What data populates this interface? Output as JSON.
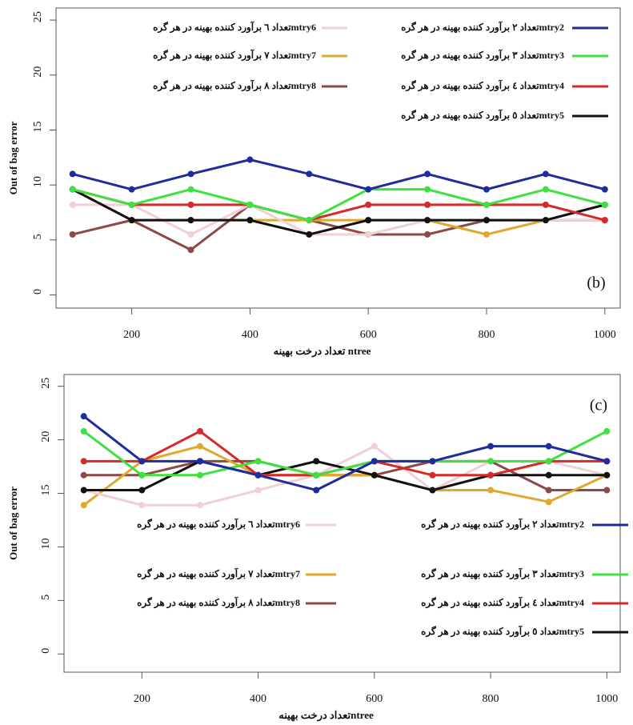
{
  "chart_data": [
    {
      "type": "line",
      "annotation": "(b)",
      "x_label": "تعداد درخت بهینه ntree",
      "y_label": "Out of bag error",
      "x": [
        100,
        200,
        300,
        400,
        500,
        600,
        700,
        800,
        900,
        1000
      ],
      "xlim": [
        72,
        1026
      ],
      "ylim": [
        -1.2,
        26.1
      ],
      "xticks": [
        200,
        400,
        600,
        800,
        1000
      ],
      "yticks": [
        0,
        5,
        10,
        15,
        20,
        25
      ],
      "legend": "top",
      "series": [
        {
          "name": "تعداد ۲ برآورد کننده بهینه در هر گرهmtry2",
          "color": "#1f2c9c",
          "values": [
            11,
            9.6,
            11,
            12.3,
            11,
            9.6,
            11,
            9.6,
            11,
            9.6
          ]
        },
        {
          "name": "تعداد ۳ برآورد کننده بهینه در هر گرهmtry3",
          "color": "#3fe03f",
          "values": [
            9.6,
            8.2,
            9.6,
            8.2,
            6.8,
            9.6,
            9.6,
            8.2,
            9.6,
            8.2
          ]
        },
        {
          "name": "تعداد ٤ برآورد کننده بهینه در هر گرهmtry4",
          "color": "#d42a2a",
          "values": [
            9.6,
            8.2,
            8.2,
            8.2,
            6.8,
            8.2,
            8.2,
            8.2,
            8.2,
            6.8
          ]
        },
        {
          "name": "تعداد ٥ برآورد کننده بهینه در هر گرهmtry5",
          "color": "#111111",
          "values": [
            9.6,
            6.8,
            6.8,
            6.8,
            5.5,
            6.8,
            6.8,
            6.8,
            6.8,
            8.2
          ]
        },
        {
          "name": "تعداد ٦ برآورد کننده بهینه در هر گرهmtry6",
          "color": "#f0cfd8",
          "values": [
            8.2,
            8.2,
            5.5,
            8.2,
            5.5,
            5.5,
            6.8,
            6.8,
            6.8,
            6.8
          ]
        },
        {
          "name": "تعداد ۷ برآورد کننده بهینه در هر گرهmtry7",
          "color": "#e0a82e",
          "values": [
            9.6,
            6.8,
            6.8,
            6.8,
            6.8,
            6.8,
            6.8,
            5.5,
            6.8,
            6.8
          ]
        },
        {
          "name": "تعداد ۸ برآورد کننده بهینه در هر گرهmtry8",
          "color": "#8b4a45",
          "values": [
            5.5,
            6.8,
            4.1,
            8.2,
            6.8,
            5.5,
            5.5,
            6.8,
            6.8,
            6.8
          ]
        }
      ]
    },
    {
      "type": "line",
      "annotation": "(c)",
      "x_label": "تعداد درخت بهینهntree",
      "y_label": "Out of bag error",
      "x": [
        100,
        200,
        300,
        400,
        500,
        600,
        700,
        800,
        900,
        1000
      ],
      "xlim": [
        66,
        1023
      ],
      "ylim": [
        -1.7,
        26.1
      ],
      "xticks": [
        200,
        400,
        600,
        800,
        1000
      ],
      "yticks": [
        0,
        5,
        10,
        15,
        20,
        25
      ],
      "legend": "bottom",
      "series": [
        {
          "name": "تعداد ۲ برآورد کننده بهینه در هر گرهmtry2",
          "color": "#1f2c9c",
          "values": [
            22.2,
            18,
            18,
            16.7,
            15.3,
            18,
            18,
            19.4,
            19.4,
            18
          ]
        },
        {
          "name": "تعداد ۳ برآورد کننده بهینه در هر گرهmtry3",
          "color": "#3fe03f",
          "values": [
            20.8,
            16.7,
            16.7,
            18,
            16.7,
            18,
            18,
            18,
            18,
            20.8
          ]
        },
        {
          "name": "تعداد ٤ برآورد کننده بهینه در هر گرهmtry4",
          "color": "#d42a2a",
          "values": [
            18,
            18,
            20.8,
            16.7,
            16.7,
            18,
            16.7,
            16.7,
            18,
            18
          ]
        },
        {
          "name": "تعداد ٥ برآورد کننده بهینه در هر گرهmtry5",
          "color": "#111111",
          "values": [
            15.3,
            15.3,
            18,
            16.7,
            18,
            16.7,
            15.3,
            16.7,
            16.7,
            16.7
          ]
        },
        {
          "name": "تعداد ٦ برآورد کننده بهینه در هر گرهmtry6",
          "color": "#f0cfd8",
          "values": [
            15.3,
            13.9,
            13.9,
            15.3,
            16.7,
            19.4,
            15.3,
            18,
            18,
            16.7
          ]
        },
        {
          "name": "تعداد ۷ برآورد کننده بهینه در هر گرهmtry7",
          "color": "#e0a82e",
          "values": [
            13.9,
            18,
            19.4,
            16.7,
            16.7,
            16.7,
            15.3,
            15.3,
            14.2,
            16.7
          ]
        },
        {
          "name": "تعداد ۸ برآورد کننده بهینه در هر گرهmtry8",
          "color": "#8b4a45",
          "values": [
            16.7,
            16.7,
            18,
            18,
            16.7,
            16.7,
            18,
            18,
            15.3,
            15.3
          ]
        }
      ]
    }
  ]
}
